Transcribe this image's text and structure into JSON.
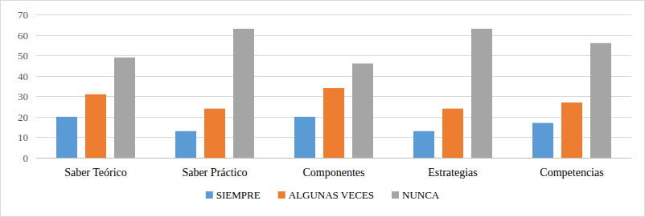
{
  "chart_data": {
    "type": "bar",
    "categories": [
      "Saber Teórico",
      "Saber Práctico",
      "Componentes",
      "Estrategias",
      "Competencias"
    ],
    "series": [
      {
        "name": "SIEMPRE",
        "color": "#5b9bd5",
        "values": [
          20,
          13,
          20,
          13,
          17
        ]
      },
      {
        "name": "ALGUNAS VECES",
        "color": "#ed7d31",
        "values": [
          31,
          24,
          34,
          24,
          27
        ]
      },
      {
        "name": "NUNCA",
        "color": "#a5a5a5",
        "values": [
          49,
          63,
          46,
          63,
          56
        ]
      }
    ],
    "ylim": [
      0,
      70
    ],
    "yticks": [
      0,
      10,
      20,
      30,
      40,
      50,
      60,
      70
    ],
    "grid": true,
    "legend": "bottom"
  }
}
